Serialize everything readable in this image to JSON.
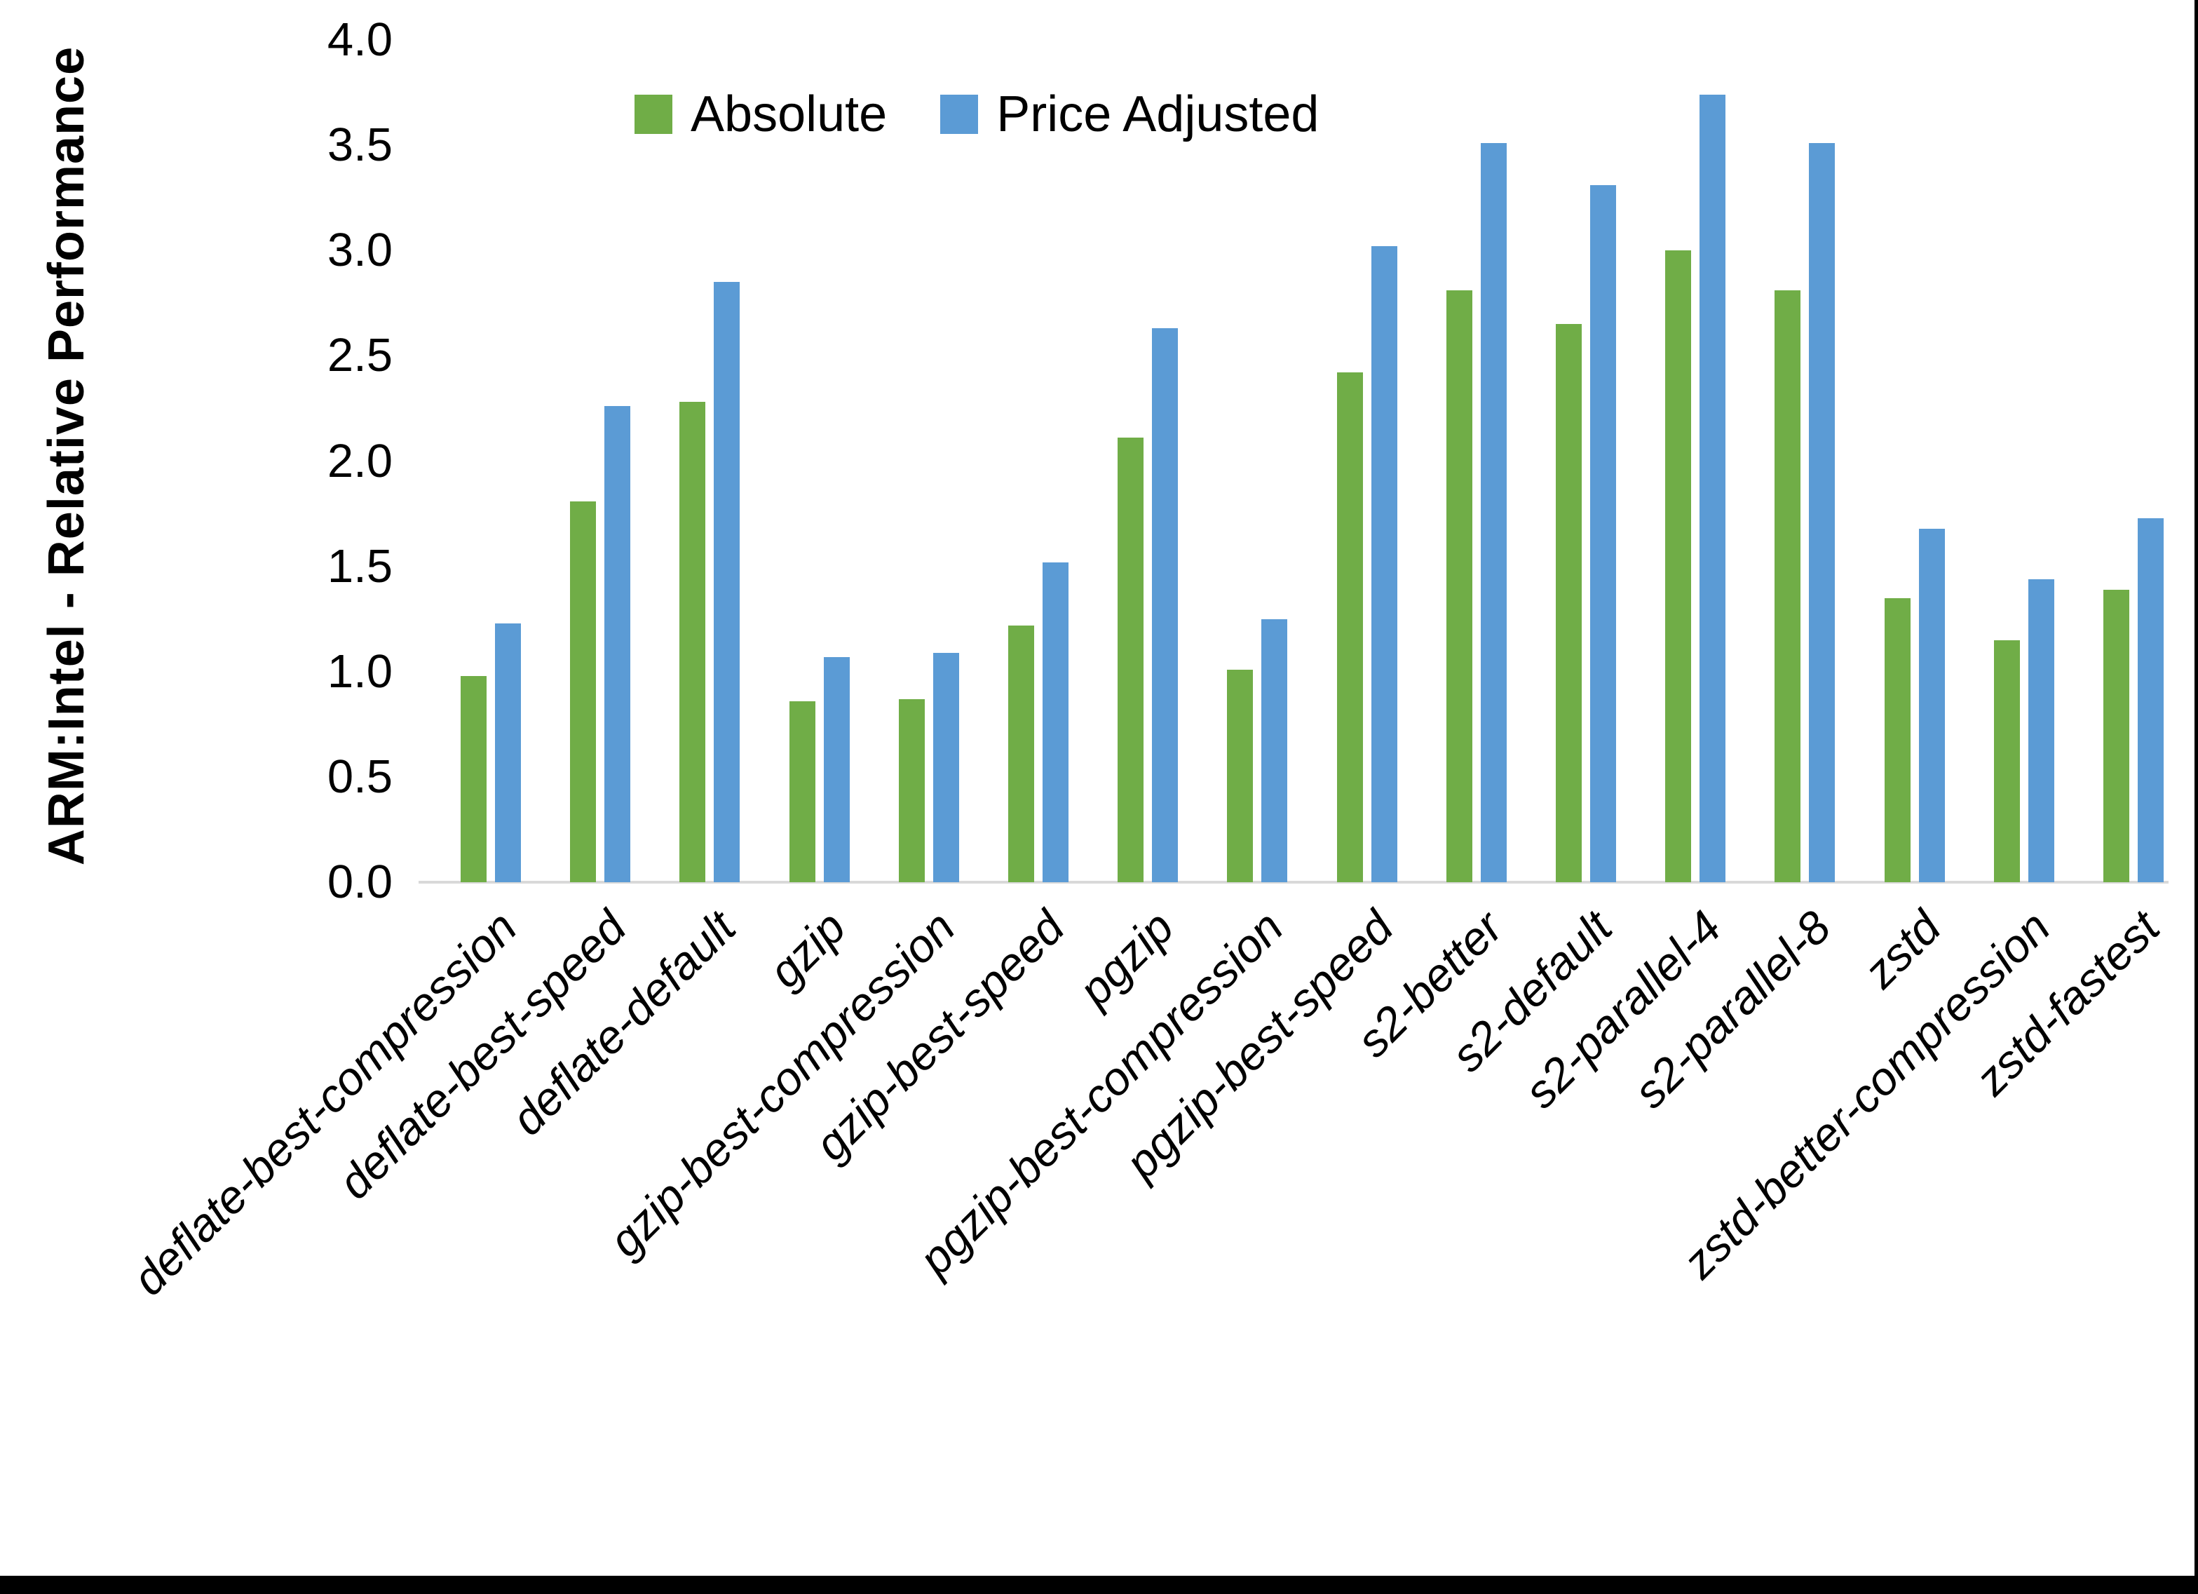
{
  "chart_data": {
    "type": "bar",
    "title": "",
    "ylabel": "ARM:Intel - Relative Performance",
    "xlabel": "",
    "ylim": [
      0.0,
      4.0
    ],
    "ytick_step": 0.5,
    "ytick_labels": [
      "4.0",
      "3.5",
      "3.0",
      "2.5",
      "2.0",
      "1.5",
      "1.0",
      "0.5",
      "0.0"
    ],
    "grid": false,
    "legend_position": "top",
    "categories": [
      "deflate-best-compression",
      "deflate-best-speed",
      "deflate-default",
      "gzip",
      "gzip-best-compression",
      "gzip-best-speed",
      "pgzip",
      "pgzip-best-compression",
      "pgzip-best-speed",
      "s2-better",
      "s2-default",
      "s2-parallel-4",
      "s2-parallel-8",
      "zstd",
      "zstd-better-compression",
      "zstd-fastest"
    ],
    "series": [
      {
        "name": "Absolute",
        "color": "#70AD47",
        "values": [
          0.98,
          1.81,
          2.28,
          0.86,
          0.87,
          1.22,
          2.11,
          1.01,
          2.42,
          2.81,
          2.65,
          3.0,
          2.81,
          1.35,
          1.15,
          1.39
        ]
      },
      {
        "name": "Price Adjusted",
        "color": "#5B9BD5",
        "values": [
          1.23,
          2.26,
          2.85,
          1.07,
          1.09,
          1.52,
          2.63,
          1.25,
          3.02,
          3.51,
          3.31,
          3.74,
          3.51,
          1.68,
          1.44,
          1.73
        ]
      }
    ]
  },
  "legend": {
    "items": [
      {
        "label": "Absolute",
        "color": "#70AD47"
      },
      {
        "label": "Price Adjusted",
        "color": "#5B9BD5"
      }
    ]
  },
  "colors": {
    "absolute_green": "#70AD47",
    "price_adjusted_blue": "#5B9BD5",
    "axis_line": "#D9D9D9",
    "text": "#000000",
    "frame": "#000000"
  }
}
